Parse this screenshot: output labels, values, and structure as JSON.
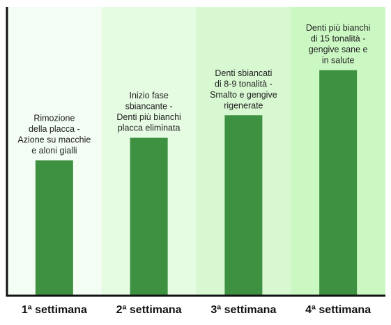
{
  "chart_data": {
    "type": "bar",
    "categories": [
      "1ª settimana",
      "2ª settimana",
      "3ª settimana",
      "4ª settimana"
    ],
    "values": [
      150,
      175,
      200,
      250
    ],
    "ylim": [
      0,
      320
    ],
    "grid": false,
    "annotations": [
      [
        "Rimozione",
        "della placca -",
        "Azione su macchie",
        "e aloni gialli"
      ],
      [
        "Inizio fase",
        "sbiancante -",
        "Denti più bianchi",
        "placca eliminata"
      ],
      [
        "Denti sbiancati",
        "di 8-9 tonalità -",
        "Smalto e gengive",
        "rigenerate"
      ],
      [
        "Denti più bianchi",
        "di 15 tonalità -",
        "gengive sane e",
        "in salute"
      ]
    ],
    "colors": {
      "bar": "#3f9142",
      "axis": "#111111",
      "backgrounds": [
        "#f4fdf3",
        "#e5fbe2",
        "#d8f8d2",
        "#cbf7c3"
      ]
    }
  }
}
